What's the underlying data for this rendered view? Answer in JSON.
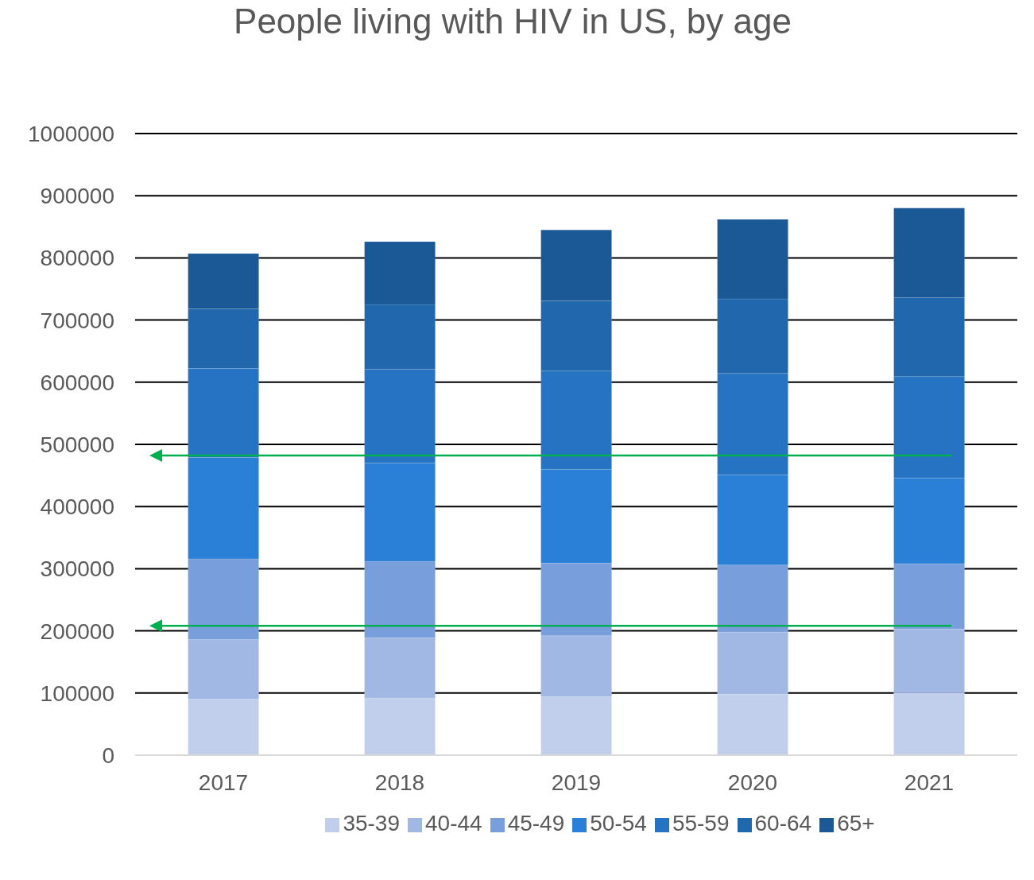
{
  "chart_data": {
    "type": "bar",
    "title": "People living with HIV in US, by age",
    "categories": [
      "2017",
      "2018",
      "2019",
      "2020",
      "2021"
    ],
    "stacked": true,
    "series": [
      {
        "name": "35-39",
        "color": "#c1cfec",
        "values": [
          90000,
          92000,
          94000,
          98000,
          100000
        ]
      },
      {
        "name": "40-44",
        "color": "#a2b8e4",
        "values": [
          96000,
          97000,
          98000,
          100000,
          103000
        ]
      },
      {
        "name": "45-49",
        "color": "#789fdc",
        "values": [
          130000,
          123000,
          117000,
          108000,
          105000
        ]
      },
      {
        "name": "50-54",
        "color": "#2a7fd6",
        "values": [
          163000,
          158000,
          151000,
          145000,
          138000
        ]
      },
      {
        "name": "55-59",
        "color": "#2573c2",
        "values": [
          143000,
          151000,
          158000,
          163000,
          163000
        ]
      },
      {
        "name": "60-64",
        "color": "#2167ae",
        "values": [
          96000,
          104000,
          113000,
          120000,
          127000
        ]
      },
      {
        "name": "65+",
        "color": "#1a5896",
        "values": [
          89000,
          101000,
          114000,
          128000,
          144000
        ]
      }
    ],
    "ylim": [
      0,
      1000000
    ],
    "yticks": [
      0,
      100000,
      200000,
      300000,
      400000,
      500000,
      600000,
      700000,
      800000,
      900000,
      1000000
    ],
    "grid": "y",
    "legend": "bottom",
    "ref_lines": [
      {
        "axis": "y",
        "value": 482000,
        "color": "#00b050"
      },
      {
        "axis": "y",
        "value": 208000,
        "color": "#00b050"
      }
    ]
  }
}
